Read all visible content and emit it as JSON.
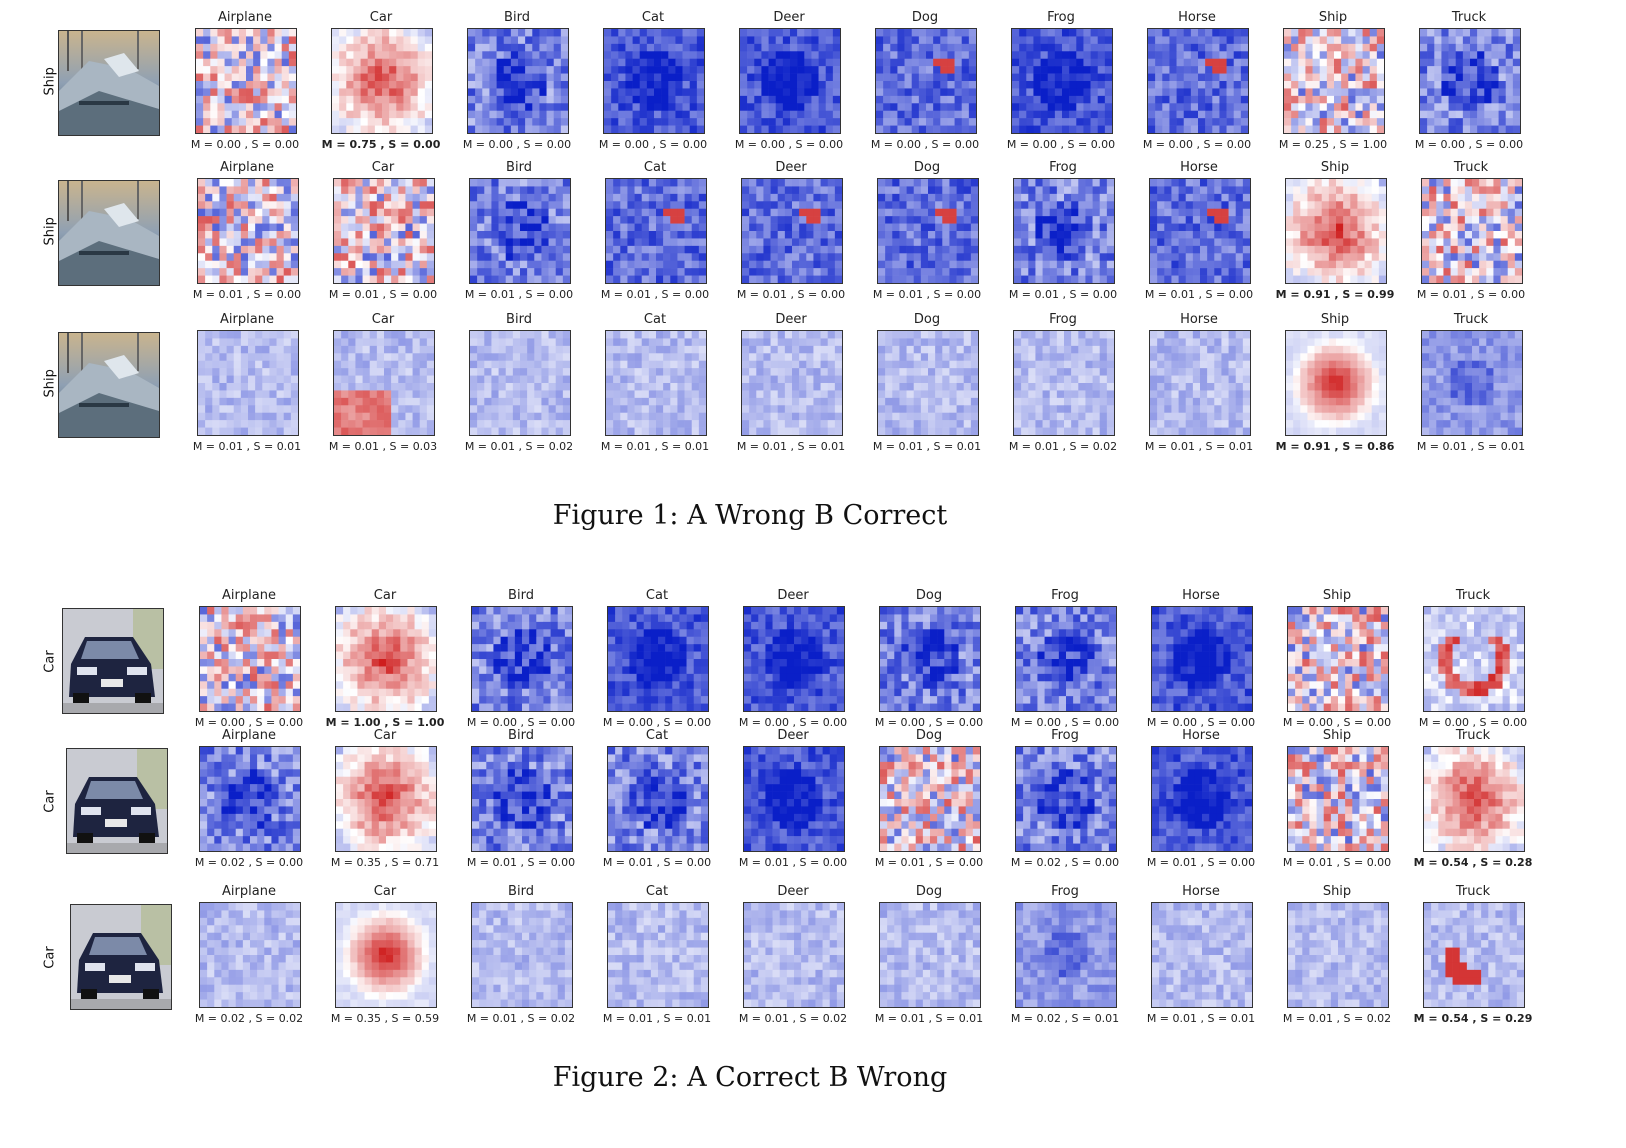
{
  "classes": [
    "Airplane",
    "Car",
    "Bird",
    "Cat",
    "Deer",
    "Dog",
    "Frog",
    "Horse",
    "Ship",
    "Truck"
  ],
  "colors": {
    "positive": "#cc1111",
    "negative": "#0a1fc8",
    "neutral": "#ffffff"
  },
  "figures": [
    {
      "caption": "Figure 1:  A Wrong B Correct",
      "thumbnail": "boat-photo",
      "rows": [
        {
          "label": "Ship",
          "bold_index": 1,
          "scores": [
            "M = 0.00 , S = 0.00",
            "M = 0.75 , S = 0.00",
            "M = 0.00 , S = 0.00",
            "M = 0.00 , S = 0.00",
            "M = 0.00 , S = 0.00",
            "M = 0.00 , S = 0.00",
            "M = 0.00 , S = 0.00",
            "M = 0.00 , S = 0.00",
            "M = 0.25 , S = 1.00",
            "M = 0.00 , S = 0.00"
          ],
          "tones": [
            "mixed",
            "red",
            "blue",
            "darkblue",
            "darkblue",
            "blue-spot",
            "darkblue",
            "blue-spot",
            "mixed",
            "blue"
          ]
        },
        {
          "label": "Ship",
          "bold_index": 8,
          "scores": [
            "M = 0.01 , S = 0.00",
            "M = 0.01 , S = 0.00",
            "M = 0.01 , S = 0.00",
            "M = 0.01 , S = 0.00",
            "M = 0.01 , S = 0.00",
            "M = 0.01 , S = 0.00",
            "M = 0.01 , S = 0.00",
            "M = 0.01 , S = 0.00",
            "M = 0.91 , S = 0.99",
            "M = 0.01 , S = 0.00"
          ],
          "tones": [
            "mixed",
            "mixed",
            "blue",
            "blue-spot",
            "blue-spot",
            "blue-spot",
            "blue",
            "blue-spot",
            "red",
            "mixed"
          ]
        },
        {
          "label": "Ship",
          "bold_index": 8,
          "scores": [
            "M = 0.01 , S = 0.01",
            "M = 0.01 , S = 0.03",
            "M = 0.01 , S = 0.02",
            "M = 0.01 , S = 0.01",
            "M = 0.01 , S = 0.01",
            "M = 0.01 , S = 0.01",
            "M = 0.01 , S = 0.02",
            "M = 0.01 , S = 0.01",
            "M = 0.91 , S = 0.86",
            "M = 0.01 , S = 0.01"
          ],
          "tones": [
            "faint",
            "faint-red",
            "faint",
            "faint",
            "faint",
            "faint",
            "faint",
            "faint",
            "blob",
            "faint-blue"
          ]
        }
      ]
    },
    {
      "caption": "Figure 2:  A Correct B Wrong",
      "thumbnail": "car-photo",
      "rows": [
        {
          "label": "Car",
          "bold_index": 1,
          "scores": [
            "M = 0.00 , S = 0.00",
            "M = 1.00 , S = 1.00",
            "M = 0.00 , S = 0.00",
            "M = 0.00 , S = 0.00",
            "M = 0.00 , S = 0.00",
            "M = 0.00 , S = 0.00",
            "M = 0.00 , S = 0.00",
            "M = 0.00 , S = 0.00",
            "M = 0.00 , S = 0.00",
            "M = 0.00 , S = 0.00"
          ],
          "tones": [
            "mixed",
            "red",
            "blue",
            "darkblue",
            "darkblue",
            "blue",
            "blue",
            "darkblue",
            "mixed",
            "ring"
          ]
        },
        {
          "label": "Car",
          "bold_index": 9,
          "scores": [
            "M = 0.02 , S = 0.00",
            "M = 0.35 , S = 0.71",
            "M = 0.01 , S = 0.00",
            "M = 0.01 , S = 0.00",
            "M = 0.01 , S = 0.00",
            "M = 0.01 , S = 0.00",
            "M = 0.02 , S = 0.00",
            "M = 0.01 , S = 0.00",
            "M = 0.01 , S = 0.00",
            "M = 0.54 , S = 0.28"
          ],
          "tones": [
            "blue",
            "red",
            "blue",
            "blue",
            "darkblue",
            "mixed",
            "blue",
            "darkblue",
            "mixed",
            "red"
          ]
        },
        {
          "label": "Car",
          "bold_index": 9,
          "scores": [
            "M = 0.02 , S = 0.02",
            "M = 0.35 , S = 0.59",
            "M = 0.01 , S = 0.02",
            "M = 0.01 , S = 0.01",
            "M = 0.01 , S = 0.02",
            "M = 0.01 , S = 0.01",
            "M = 0.02 , S = 0.01",
            "M = 0.01 , S = 0.01",
            "M = 0.01 , S = 0.02",
            "M = 0.54 , S = 0.29"
          ],
          "tones": [
            "faint",
            "blob",
            "faint",
            "faint",
            "faint",
            "faint",
            "faint-blue",
            "faint",
            "faint",
            "crescent"
          ]
        }
      ]
    }
  ]
}
